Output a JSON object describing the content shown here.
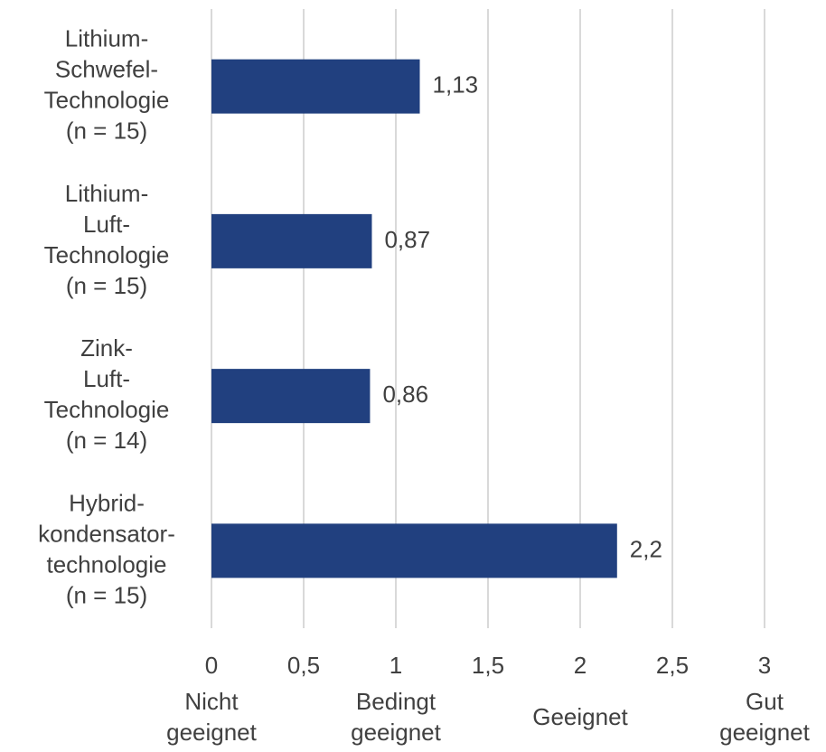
{
  "chart_data": {
    "type": "barh",
    "categories": [
      [
        "Lithium-",
        "Schwefel-",
        "Technologie",
        "(n = 15)"
      ],
      [
        "Lithium-",
        "Luft-",
        "Technologie",
        "(n = 15)"
      ],
      [
        "Zink-",
        "Luft-",
        "Technologie",
        "(n = 14)"
      ],
      [
        "Hybrid-",
        "kondensator-",
        "technologie",
        "(n = 15)"
      ]
    ],
    "values": [
      1.13,
      0.87,
      0.86,
      2.2
    ],
    "value_labels": [
      "1,13",
      "0,87",
      "0,86",
      "2,2"
    ],
    "color": "#21407f",
    "xlim": [
      0,
      3
    ],
    "xticks": [
      0,
      {
        "value": 0.5,
        "label": "0,5"
      },
      1,
      {
        "value": 1.5,
        "label": "1,5"
      },
      2,
      {
        "value": 2.5,
        "label": "2,5"
      },
      3
    ],
    "grid": true,
    "scale_labels": [
      {
        "value": 0,
        "label": [
          "Nicht",
          "geeignet"
        ]
      },
      {
        "value": 1,
        "label": [
          "Bedingt",
          "geeignet"
        ]
      },
      {
        "value": 2,
        "label": [
          "Geeignet"
        ]
      },
      {
        "value": 3,
        "label": [
          "Gut",
          "geeignet"
        ]
      }
    ]
  }
}
